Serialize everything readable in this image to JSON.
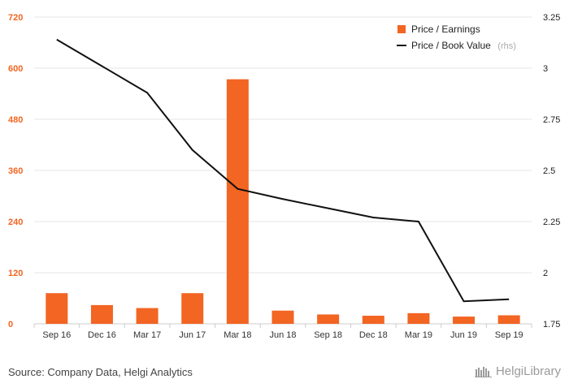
{
  "chart_data": {
    "type": "bar+line",
    "categories": [
      "Sep 16",
      "Dec 16",
      "Mar 17",
      "Jun 17",
      "Mar 18",
      "Jun 18",
      "Sep 18",
      "Dec 18",
      "Mar 19",
      "Jun 19",
      "Sep 19"
    ],
    "series": [
      {
        "name": "Price / Earnings",
        "type": "bar",
        "axis": "left",
        "color": "#f26522",
        "values": [
          72,
          44,
          37,
          72,
          574,
          31,
          22,
          19,
          25,
          17,
          20
        ]
      },
      {
        "name": "Price / Book Value",
        "note": "(rhs)",
        "type": "line",
        "axis": "right",
        "color": "#111111",
        "values": [
          3.14,
          3.01,
          2.88,
          2.6,
          2.41,
          2.36,
          2.315,
          2.27,
          2.25,
          1.86,
          1.87
        ]
      }
    ],
    "y_left": {
      "min": 0,
      "max": 720,
      "ticks": [
        "0",
        "120",
        "240",
        "360",
        "480",
        "600",
        "720"
      ]
    },
    "y_right": {
      "min": 1.75,
      "max": 3.25,
      "ticks": [
        "1.75",
        "2",
        "2.25",
        "2.5",
        "2.75",
        "3",
        "3.25"
      ]
    },
    "grid": true,
    "legend_position": "top-right"
  },
  "footer": {
    "source": "Source: Company Data, Helgi Analytics",
    "brand": "HelgiLibrary"
  }
}
